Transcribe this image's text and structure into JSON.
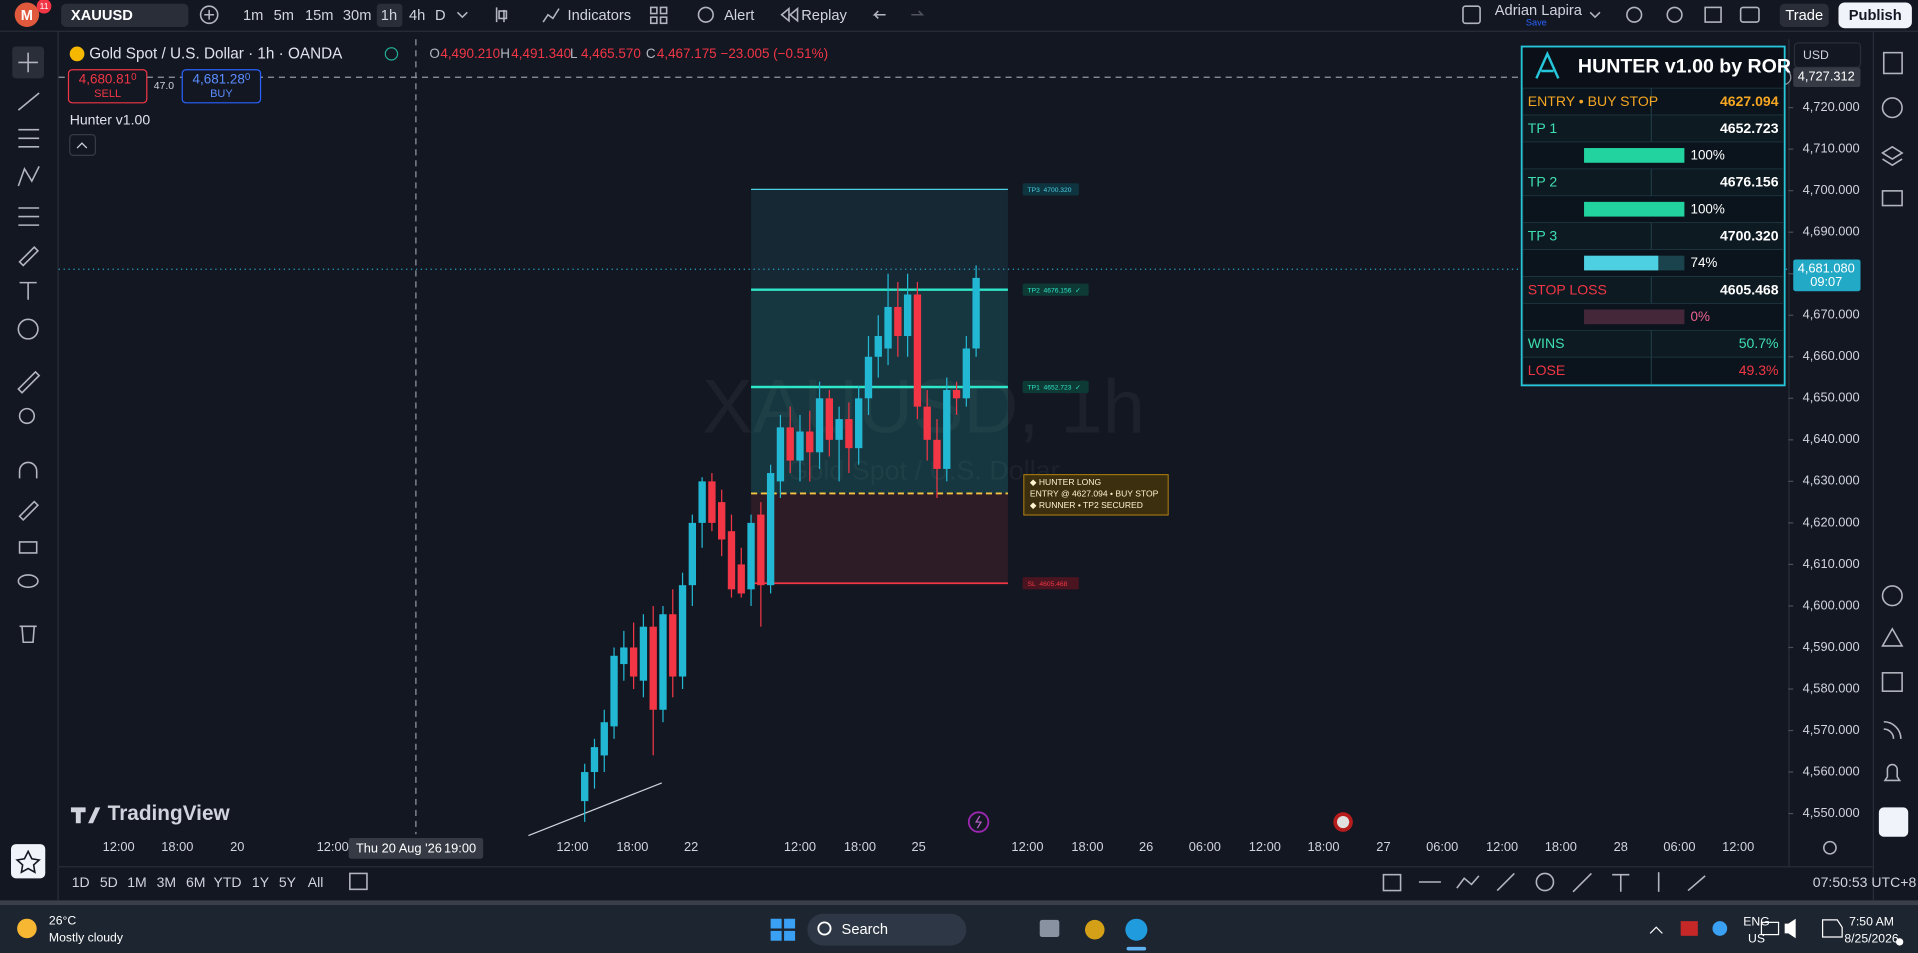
{
  "toolbar": {
    "avatar": "M",
    "badge": "11",
    "symbol": "XAUUSD",
    "intervals": [
      "1m",
      "5m",
      "15m",
      "30m",
      "1h",
      "4h",
      "D"
    ],
    "buttons": [
      "Indicators",
      "Alert",
      "Replay"
    ],
    "user": "Adrian Lapira",
    "save": "Save",
    "trade": "Trade",
    "publish": "Publish"
  },
  "legend": {
    "title": "Gold Spot / U.S. Dollar · 1h · OANDA",
    "ohlc": [
      {
        "key": "O",
        "value": "4,490.210"
      },
      {
        "key": "H",
        "value": "4,491.340"
      },
      {
        "key": "L",
        "value": "4,465.570"
      },
      {
        "key": "C",
        "value": "4,467.175"
      }
    ],
    "change": "−23.005 (−0.51%)",
    "sell": {
      "price": "4,680.81",
      "digit": "0",
      "label": "SELL"
    },
    "spread": "47.0",
    "buy": {
      "price": "4,681.28",
      "digit": "0",
      "label": "BUY"
    },
    "indicator": "Hunter v1.00"
  },
  "chart": {
    "watermark": "XAUUSD, 1h",
    "watermark_sub": "Gold Spot / U.S. Dollar",
    "currency": "USD",
    "ylim": [
      4545.6,
      4735.3
    ],
    "yticks": [
      {
        "value": 4720,
        "label": "4,720.000"
      },
      {
        "value": 4710,
        "label": "4,710.000"
      },
      {
        "value": 4700,
        "label": "4,700.000"
      },
      {
        "value": 4690,
        "label": "4,690.000"
      },
      {
        "value": 4680,
        "label": "4,680.000"
      },
      {
        "value": 4670,
        "label": "4,670.000"
      },
      {
        "value": 4660,
        "label": "4,660.000"
      },
      {
        "value": 4650,
        "label": "4,650.000"
      },
      {
        "value": 4640,
        "label": "4,640.000"
      },
      {
        "value": 4630,
        "label": "4,630.000"
      },
      {
        "value": 4620,
        "label": "4,620.000"
      },
      {
        "value": 4610,
        "label": "4,610.000"
      },
      {
        "value": 4600,
        "label": "4,600.000"
      },
      {
        "value": 4590,
        "label": "4,590.000"
      },
      {
        "value": 4580,
        "label": "4,580.000"
      },
      {
        "value": 4570,
        "label": "4,570.000"
      },
      {
        "value": 4560,
        "label": "4,560.000"
      },
      {
        "value": 4550,
        "label": "4,550.000"
      }
    ],
    "xticks": [
      "12:00",
      "18:00",
      "20",
      "12:00",
      "12:00",
      "18:00",
      "22",
      "12:00",
      "18:00",
      "25",
      "12:00",
      "18:00",
      "26",
      "06:00",
      "12:00",
      "18:00",
      "27",
      "06:00",
      "12:00",
      "18:00",
      "28",
      "06:00",
      "12:00"
    ],
    "crosshair": {
      "price": {
        "value": 4727.312,
        "label": "4,727.312"
      },
      "date": "Thu 20 Aug '26",
      "hour": "19:00"
    },
    "last_price": {
      "value": 4681.08,
      "label": "4,681.080"
    },
    "countdown": "09:07",
    "candles": [
      [
        4553,
        4562,
        4548,
        4560
      ],
      [
        4560,
        4568,
        4556,
        4566
      ],
      [
        4564,
        4575,
        4560,
        4572
      ],
      [
        4571,
        4590,
        4568,
        4588
      ],
      [
        4586,
        4594,
        4582,
        4590
      ],
      [
        4590,
        4596,
        4580,
        4583
      ],
      [
        4582,
        4598,
        4578,
        4595
      ],
      [
        4595,
        4600,
        4564,
        4575
      ],
      [
        4575,
        4600,
        4572,
        4598
      ],
      [
        4598,
        4604,
        4578,
        4583
      ],
      [
        4583,
        4608,
        4580,
        4605
      ],
      [
        4605,
        4622,
        4600,
        4620
      ],
      [
        4620,
        4631,
        4614,
        4630
      ],
      [
        4630,
        4632,
        4618,
        4620
      ],
      [
        4625,
        4628,
        4612,
        4616
      ],
      [
        4618,
        4622,
        4602,
        4604
      ],
      [
        4610,
        4614,
        4602,
        4603
      ],
      [
        4604,
        4622,
        4600,
        4620
      ],
      [
        4622,
        4625,
        4595,
        4605
      ],
      [
        4605,
        4634,
        4603,
        4632
      ],
      [
        4630,
        4646,
        4626,
        4643
      ],
      [
        4643,
        4648,
        4632,
        4635
      ],
      [
        4635,
        4646,
        4630,
        4642
      ],
      [
        4642,
        4647,
        4630,
        4637
      ],
      [
        4637,
        4654,
        4633,
        4650
      ],
      [
        4650,
        4652,
        4636,
        4640
      ],
      [
        4640,
        4648,
        4630,
        4645
      ],
      [
        4645,
        4649,
        4632,
        4638
      ],
      [
        4638,
        4653,
        4634,
        4650
      ],
      [
        4650,
        4665,
        4646,
        4660
      ],
      [
        4660,
        4670,
        4655,
        4665
      ],
      [
        4662,
        4680,
        4658,
        4672
      ],
      [
        4672,
        4678,
        4660,
        4665
      ],
      [
        4665,
        4680,
        4660,
        4675
      ],
      [
        4675,
        4678,
        4645,
        4648
      ],
      [
        4648,
        4652,
        4635,
        4640
      ],
      [
        4640,
        4645,
        4626,
        4633
      ],
      [
        4633,
        4655,
        4630,
        4652
      ],
      [
        4652,
        4654,
        4646,
        4650
      ],
      [
        4650,
        4665,
        4648,
        4662
      ],
      [
        4662,
        4682,
        4660,
        4679
      ]
    ],
    "up_color": "#22b8d4",
    "down_color": "#f23645",
    "entry": 4627.094,
    "levels": [
      {
        "name": "TP3",
        "price": {
          "value": 4700.32,
          "label": "4700.320"
        }
      },
      {
        "name": "TP2",
        "price": {
          "value": 4676.156,
          "label": "4676.156"
        },
        "status": "✓"
      },
      {
        "name": "TP1",
        "price": {
          "value": 4652.723,
          "label": "4652.723"
        },
        "status": "✓"
      },
      {
        "name": "SL",
        "price": {
          "value": 4605.468,
          "label": "4605.468"
        }
      }
    ],
    "signal": [
      "◆ HUNTER LONG",
      "ENTRY @ 4627.094 • BUY STOP",
      "◆ RUNNER • TP2 SECURED"
    ]
  },
  "panel": {
    "title": "HUNTER v1.00 by ROR",
    "rows": [
      {
        "label": "ENTRY • BUY STOP",
        "value": "4627.094"
      },
      {
        "label": "TP 1",
        "value": "4652.723"
      },
      {
        "progress": {
          "value": 100,
          "label": "100%"
        }
      },
      {
        "label": "TP 2",
        "value": "4676.156"
      },
      {
        "progress": {
          "value": 100,
          "label": "100%"
        }
      },
      {
        "label": "TP 3",
        "value": "4700.320"
      },
      {
        "progress": {
          "value": 74,
          "label": "74%"
        }
      },
      {
        "label": "STOP LOSS",
        "value": "4605.468"
      },
      {
        "progress": {
          "value": 0,
          "label": "0%"
        }
      },
      {
        "label": "WINS",
        "value": "50.7%"
      },
      {
        "label": "LOSE",
        "value": "49.3%"
      }
    ]
  },
  "brand": "TradingView",
  "ranges": [
    "1D",
    "5D",
    "1M",
    "3M",
    "6M",
    "YTD",
    "1Y",
    "5Y",
    "All"
  ],
  "clock": "07:50:53 UTC+8",
  "taskbar": {
    "temperature": "26°C",
    "weather": "Mostly cloudy",
    "search": "Search",
    "language": "ENG",
    "region": "US",
    "time": "7:50 AM",
    "date": "8/25/2026"
  }
}
